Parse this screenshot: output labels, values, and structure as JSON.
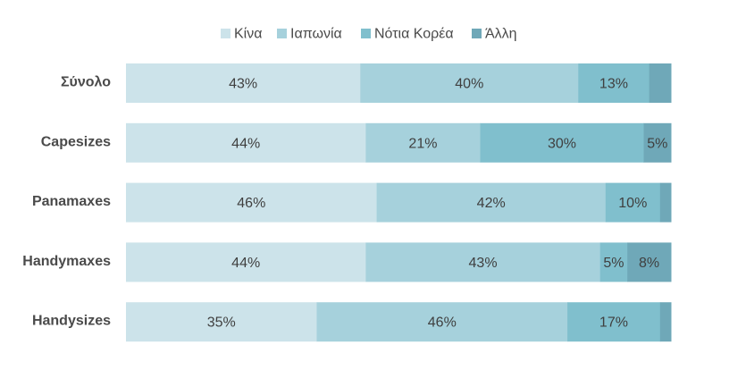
{
  "chart_data": {
    "type": "bar",
    "orientation": "horizontal",
    "stacked": true,
    "normalized": true,
    "categories": [
      "Σύνολο",
      "Capesizes",
      "Panamaxes",
      "Handymaxes",
      "Handysizes"
    ],
    "series": [
      {
        "name": "Κίνα",
        "color": "#cce3ea",
        "values": [
          43,
          44,
          46,
          44,
          35
        ],
        "labels": [
          "43%",
          "44%",
          "46%",
          "44%",
          "35%"
        ]
      },
      {
        "name": "Ιαπωνία",
        "color": "#a6d1dc",
        "values": [
          40,
          21,
          42,
          43,
          46
        ],
        "labels": [
          "40%",
          "21%",
          "42%",
          "43%",
          "46%"
        ]
      },
      {
        "name": "Νότια Κορέα",
        "color": "#80bfcd",
        "values": [
          13,
          30,
          10,
          5,
          17
        ],
        "labels": [
          "13%",
          "30%",
          "10%",
          "5%",
          "17%"
        ]
      },
      {
        "name": "Άλλη",
        "color": "#6fa8b8",
        "values": [
          4,
          5,
          2,
          8,
          2
        ],
        "labels": [
          "",
          "5%",
          "",
          "8%",
          ""
        ]
      }
    ],
    "xlim": [
      0,
      100
    ],
    "legend_position": "top",
    "grid": false
  }
}
